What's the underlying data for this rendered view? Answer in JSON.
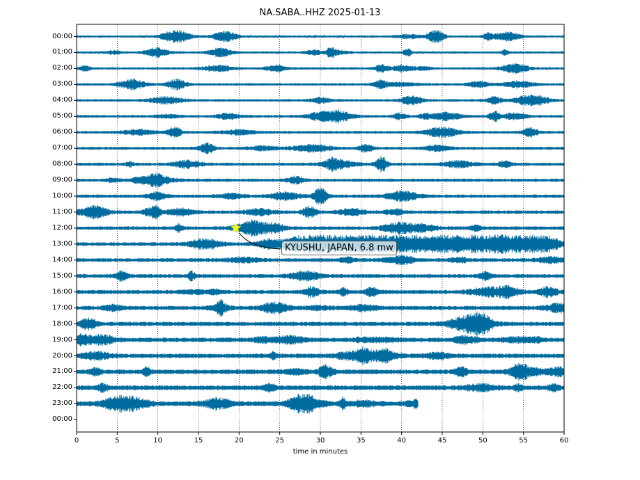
{
  "chart_data": {
    "type": "line",
    "title": "NA.SABA..HHZ 2025-01-13",
    "xlabel": "time in minutes",
    "ylabel": "",
    "xlim": [
      0,
      60
    ],
    "x_ticks": [
      0,
      5,
      10,
      15,
      20,
      25,
      30,
      35,
      40,
      45,
      50,
      55,
      60
    ],
    "y_tick_labels": [
      "00:00",
      "01:00",
      "02:00",
      "03:00",
      "04:00",
      "05:00",
      "06:00",
      "07:00",
      "08:00",
      "09:00",
      "10:00",
      "11:00",
      "12:00",
      "13:00",
      "14:00",
      "15:00",
      "16:00",
      "17:00",
      "18:00",
      "19:00",
      "20:00",
      "21:00",
      "22:00",
      "23:00",
      "00:00"
    ],
    "series_color": "#006b9e",
    "grid": "vertical dotted",
    "last_trace_end_minutes": 42,
    "event": {
      "label": "KYUSHU, JAPAN, 6.8 mw",
      "row": "12:00",
      "time_minutes": 19.6,
      "marker": "star-icon",
      "marker_color": "#ffff00"
    }
  }
}
